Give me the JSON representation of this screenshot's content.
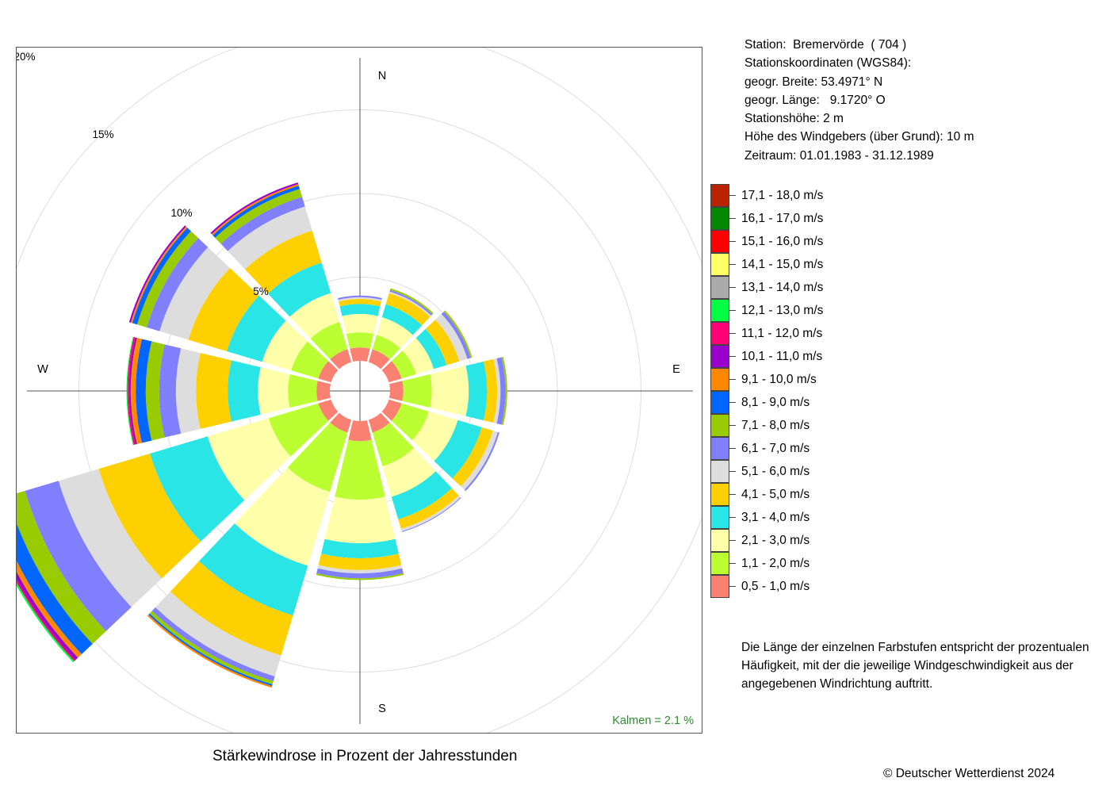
{
  "station": {
    "line1": "Station:  Bremervörde  ( 704 )",
    "line2": "Stationskoordinaten (WGS84):",
    "line3": "geogr. Breite: 53.4971° N",
    "line4": "geogr. Länge:   9.1720° O",
    "line5": "Stationshöhe: 2 m",
    "line6": "Höhe des Windgebers (über Grund): 10 m",
    "line7": "Zeitraum: 01.01.1983 - 31.12.1989"
  },
  "note": "Die Länge der einzelnen Farbstufen entspricht der prozentualen Häufigkeit, mit der die jeweilige Windgeschwindigkeit aus der angegebenen Windrichtung auftritt.",
  "caption": "Stärkewindrose in Prozent der Jahresstunden",
  "copyright": "© Deutscher Wetterdienst  2024",
  "chart_data": {
    "type": "wind-rose",
    "title": "Stärkewindrose in Prozent der Jahresstunden",
    "unit": "%",
    "radial_range": [
      0,
      20
    ],
    "radial_ticks": [
      5,
      10,
      15,
      20
    ],
    "radial_tick_labels": [
      "5%",
      "10%",
      "15%",
      "20%"
    ],
    "compass_labels": {
      "N": "N",
      "E": "E",
      "S": "S",
      "W": "W"
    },
    "calm_label": "Kalmen  =  2.1 %",
    "calm_percent": 2.1,
    "directions_deg": [
      0,
      30,
      60,
      90,
      120,
      150,
      180,
      210,
      240,
      270,
      300,
      330
    ],
    "classes": [
      {
        "label": "0,5 - 1,0 m/s",
        "color": "#FA8072"
      },
      {
        "label": "1,1 - 2,0 m/s",
        "color": "#BBFF33"
      },
      {
        "label": "2,1 - 3,0 m/s",
        "color": "#FFFFAA"
      },
      {
        "label": "3,1 - 4,0 m/s",
        "color": "#2AE5E5"
      },
      {
        "label": "4,1 - 5,0 m/s",
        "color": "#FFD000"
      },
      {
        "label": "5,1 - 6,0 m/s",
        "color": "#DDDDDD"
      },
      {
        "label": "6,1 - 7,0 m/s",
        "color": "#8080FF"
      },
      {
        "label": "7,1 - 8,0 m/s",
        "color": "#99CC00"
      },
      {
        "label": "8,1 - 9,0 m/s",
        "color": "#0066FF"
      },
      {
        "label": "9,1 - 10,0 m/s",
        "color": "#FF8800"
      },
      {
        "label": "10,1 - 11,0 m/s",
        "color": "#9900CC"
      },
      {
        "label": "11,1 - 12,0 m/s",
        "color": "#FF0077"
      },
      {
        "label": "12,1 - 13,0 m/s",
        "color": "#00FF44"
      },
      {
        "label": "13,1 - 14,0 m/s",
        "color": "#AAAAAA"
      },
      {
        "label": "14,1 - 15,0 m/s",
        "color": "#FFFF66"
      },
      {
        "label": "15,1 - 16,0 m/s",
        "color": "#FF0000"
      },
      {
        "label": "16,1 - 17,0 m/s",
        "color": "#008800"
      },
      {
        "label": "17,1 - 18,0 m/s",
        "color": "#BB2200"
      }
    ],
    "bounds_percent": [
      [
        0.8,
        1.7,
        2.8,
        3.4,
        3.7,
        3.8,
        3.9
      ],
      [
        0.8,
        1.7,
        2.8,
        3.6,
        4.3,
        4.4,
        4.5,
        4.6
      ],
      [
        0.8,
        1.7,
        2.8,
        3.6,
        4.4,
        4.9,
        5.1,
        5.2
      ],
      [
        0.8,
        2.5,
        4.7,
        5.8,
        6.4,
        6.6,
        6.9,
        7.0
      ],
      [
        0.8,
        2.5,
        4.3,
        5.8,
        6.5,
        6.8,
        6.9
      ],
      [
        0.8,
        2.9,
        4.8,
        6.2,
        6.8,
        6.95,
        7.0
      ],
      [
        1.2,
        4.7,
        7.3,
        8.2,
        8.9,
        9.1,
        9.4,
        9.5
      ],
      [
        0.8,
        4.5,
        9.1,
        12.2,
        14.7,
        16.0,
        16.3,
        16.5,
        16.6,
        16.7
      ],
      [
        0.8,
        3.9,
        7.7,
        11.3,
        14.5,
        17.0,
        19.1,
        20.2,
        21.1,
        21.4,
        21.6,
        21.7,
        21.8
      ],
      [
        0.8,
        2.5,
        4.3,
        6.1,
        8.0,
        9.2,
        10.2,
        11.0,
        11.6,
        11.9,
        12.0,
        12.1,
        12.15
      ],
      [
        0.8,
        2.5,
        4.3,
        6.5,
        8.9,
        10.7,
        11.5,
        12.1,
        12.4,
        12.5,
        12.6
      ],
      [
        0.8,
        2.5,
        4.3,
        6.2,
        8.2,
        9.7,
        10.3,
        10.8,
        11.0,
        11.1,
        11.2
      ]
    ]
  }
}
